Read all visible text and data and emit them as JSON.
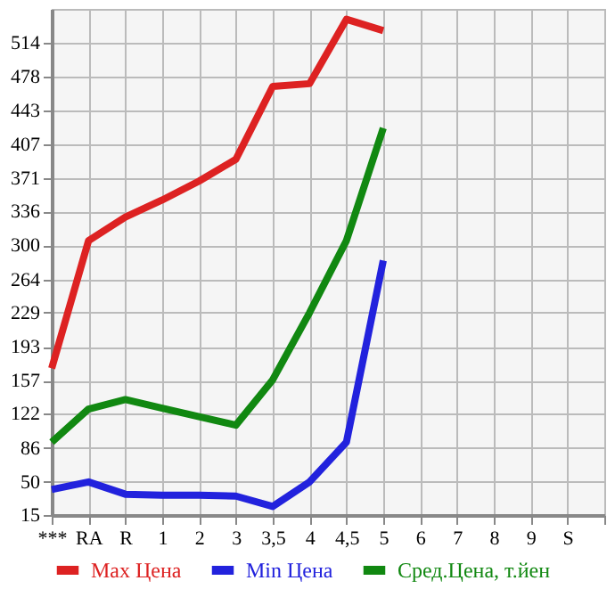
{
  "chart_data": {
    "type": "line",
    "categories": [
      "***",
      "RA",
      "R",
      "1",
      "2",
      "3",
      "3,5",
      "4",
      "4,5",
      "5",
      "6",
      "7",
      "8",
      "9",
      "S",
      null
    ],
    "series": [
      {
        "name": "Max Цена",
        "color": "#dd2222",
        "values": [
          170,
          305,
          330,
          348,
          368,
          391,
          468,
          471,
          539,
          527,
          null,
          null,
          null,
          null,
          null,
          null
        ]
      },
      {
        "name": "Min Цена",
        "color": "#2222dd",
        "values": [
          42,
          50,
          37,
          36,
          36,
          35,
          24,
          50,
          92,
          284,
          null,
          null,
          null,
          null,
          null,
          null
        ]
      },
      {
        "name": "Сред.Цена, т.йен",
        "color": "#118811",
        "values": [
          92,
          127,
          137,
          128,
          119,
          110,
          158,
          229,
          305,
          424,
          null,
          null,
          null,
          null,
          null,
          null
        ]
      }
    ],
    "ylim": [
      15,
      550
    ],
    "yticks": [
      15,
      50,
      86,
      122,
      157,
      193,
      229,
      264,
      300,
      336,
      371,
      407,
      443,
      478,
      514
    ],
    "grid": true,
    "legend": "bottom",
    "marker": "none",
    "line_style": "solid"
  }
}
